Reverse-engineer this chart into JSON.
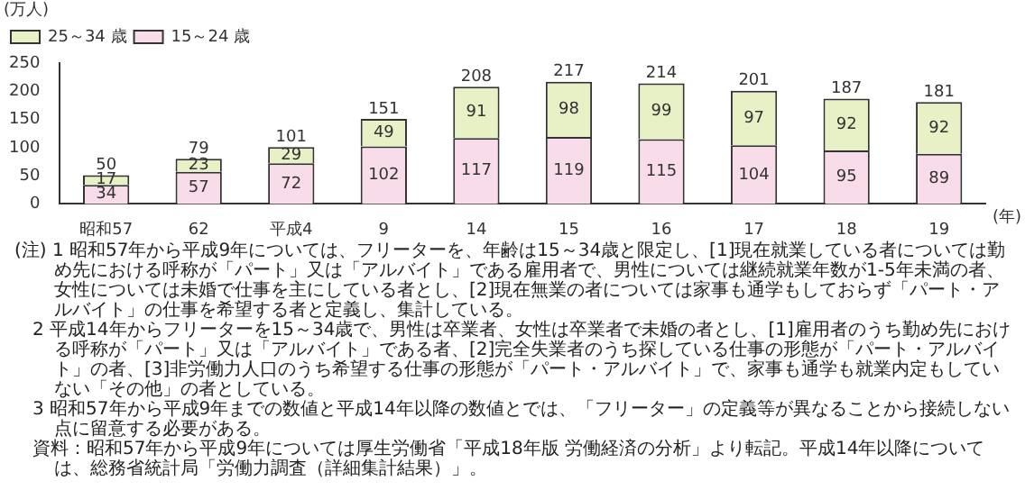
{
  "chart_data": {
    "type": "bar",
    "stacked": true,
    "data_labels": true,
    "legend": "top left",
    "grid": false,
    "ylabel": "(万人)",
    "xlabel": "(年)",
    "categories": [
      "昭和57",
      "62",
      "平成4",
      "9",
      "14",
      "15",
      "16",
      "17",
      "18",
      "19"
    ],
    "ylim": [
      0,
      250
    ],
    "yticks": [
      0,
      50,
      100,
      150,
      200,
      250
    ],
    "series": [
      {
        "name": "15～24 歳",
        "color": "#f9dcea",
        "values": [
          34,
          57,
          72,
          102,
          117,
          119,
          115,
          104,
          95,
          89
        ]
      },
      {
        "name": "25～34 歳",
        "color": "#e8f0c6",
        "values": [
          17,
          23,
          29,
          49,
          91,
          98,
          99,
          97,
          92,
          92
        ]
      }
    ],
    "totals": [
      "50",
      "79",
      "101",
      "151",
      "208",
      "217",
      "214",
      "201",
      "187",
      "181"
    ],
    "annotations": [
      "(注) 1 昭和57年から平成9年については、フリーターを、年齢は15～34歳と限定し、[1]現在就業している者については勤め先における呼称が「パート」又は「アルバイト」である雇用者で、男性については継続就業年数が1-5年未満の者、女性については未婚で仕事を主にしている者とし、[2]現在無業の者については家事も通学もしておらず「パート・アルバイト」の仕事を希望する者と定義し、集計している。",
      "2 平成14年からフリーターを15～34歳で、男性は卒業者、女性は卒業者で未婚の者とし、[1]雇用者のうち勤め先における呼称が「パート」又は「アルバイト」である者、[2]完全失業者のうち探している仕事の形態が「パート・アルバイト」の者、[3]非労働力人口のうち希望する仕事の形態が「パート・アルバイト」で、家事も通学も就業内定もしていない「その他」の者としている。",
      "3 昭和57年から平成9年までの数値と平成14年以降の数値とでは、「フリーター」の定義等が異なることから接続しない点に留意する必要がある。",
      "資料：昭和57年から平成9年については厚生労働省「平成18年版 労働経済の分析」より転記。平成14年以降については、総務省統計局「労働力調査（詳細集計結果）」。"
    ]
  }
}
